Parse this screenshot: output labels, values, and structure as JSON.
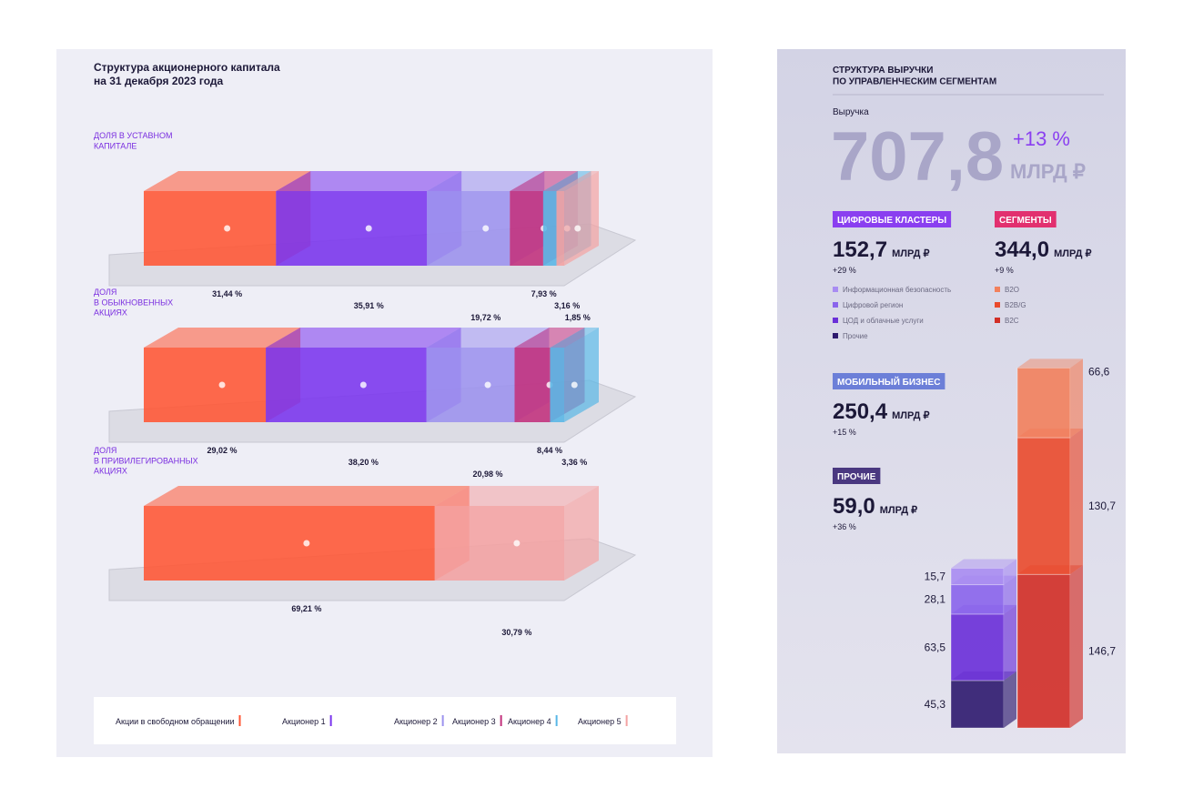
{
  "chart_data": [
    {
      "type": "bar",
      "orientation": "horizontal",
      "stacked": true,
      "title": "Структура акционерного капитала\nна 31 декабря 2023 года",
      "categories": [
        "ДОЛЯ В УСТАВНОМ\nКАПИТАЛЕ",
        "ДОЛЯ\nВ ОБЫКНОВЕННЫХ\nАКЦИЯХ",
        "ДОЛЯ\nВ ПРИВИЛЕГИРОВАННЫХ\nАКЦИЯХ"
      ],
      "xlim": [
        0,
        100
      ],
      "series": [
        {
          "name": "Акции в свободном обращении",
          "color": "#ff5533",
          "values": [
            31.44,
            29.02,
            69.21
          ],
          "value_labels": [
            "31,44 %",
            "29,02 %",
            "69,21 %"
          ]
        },
        {
          "name": "Акционер 1",
          "color": "#7a34ee",
          "values": [
            35.91,
            38.2,
            null
          ],
          "value_labels": [
            "35,91 %",
            "38,20 %",
            null
          ]
        },
        {
          "name": "Акционер 2",
          "color": "#9c92ee",
          "values": [
            19.72,
            20.98,
            null
          ],
          "value_labels": [
            "19,72 %",
            "20,98 %",
            null
          ]
        },
        {
          "name": "Акционер 3",
          "color": "#c2307c",
          "values": [
            7.93,
            8.44,
            null
          ],
          "value_labels": [
            "7,93 %",
            "8,44 %",
            null
          ]
        },
        {
          "name": "Акционер 4",
          "color": "#58b6e6",
          "values": [
            3.16,
            3.36,
            null
          ],
          "value_labels": [
            "3,16 %",
            "3,36 %",
            null
          ]
        },
        {
          "name": "Акционер 5",
          "color": "#f4a2a2",
          "values": [
            1.85,
            null,
            30.79
          ],
          "value_labels": [
            "1,85 %",
            null,
            "30,79 %"
          ]
        }
      ]
    },
    {
      "type": "bar",
      "stacked": true,
      "title": "СТРУКТУРА ВЫРУЧКИ\nПО УПРАВЛЕНЧЕСКИМ СЕГМЕНТАМ",
      "revenue_label": "Выручка",
      "revenue": "707,8",
      "revenue_growth": "+13 %",
      "revenue_unit": "МЛРД ₽",
      "panels": [
        {
          "badge": "ЦИФРОВЫЕ КЛАСТЕРЫ",
          "value": "152,7",
          "unit": "МЛРД ₽",
          "growth": "+29 %",
          "color": "#8a3ff0"
        },
        {
          "badge": "СЕГМЕНТЫ",
          "value": "344,0",
          "unit": "МЛРД ₽",
          "growth": "+9 %",
          "color": "#e2306f"
        },
        {
          "badge": "МОБИЛЬНЫЙ БИЗНЕС",
          "value": "250,4",
          "unit": "МЛРД ₽",
          "growth": "+15 %",
          "color": "#6c7fd8"
        },
        {
          "badge": "ПРОЧИЕ",
          "value": "59,0",
          "unit": "МЛРД ₽",
          "growth": "+36 %",
          "color": "#4a3880"
        }
      ],
      "categories": [
        null,
        null
      ],
      "series": [
        {
          "name": "Информационная безопасность",
          "color": "#a88cf2",
          "values": [
            15.7,
            null
          ],
          "value_labels": [
            "15,7",
            null
          ]
        },
        {
          "name": "Цифровой регион",
          "color": "#8a64ec",
          "values": [
            28.1,
            null
          ],
          "value_labels": [
            "28,1",
            null
          ]
        },
        {
          "name": "ЦОД и облачные услуги",
          "color": "#6a2fd8",
          "values": [
            63.5,
            null
          ],
          "value_labels": [
            "63,5",
            null
          ]
        },
        {
          "name": "Прочие",
          "color": "#2e1a6e",
          "values": [
            45.3,
            null
          ],
          "value_labels": [
            "45,3",
            null
          ]
        },
        {
          "name": "B2O",
          "color": "#f2805c",
          "values": [
            null,
            66.6
          ],
          "value_labels": [
            null,
            "66,6"
          ]
        },
        {
          "name": "B2B/G",
          "color": "#ea4a2c",
          "values": [
            null,
            130.7
          ],
          "value_labels": [
            null,
            "130,7"
          ]
        },
        {
          "name": "B2C",
          "color": "#d22e26",
          "values": [
            null,
            146.7
          ],
          "value_labels": [
            null,
            "146,7"
          ]
        }
      ]
    }
  ]
}
